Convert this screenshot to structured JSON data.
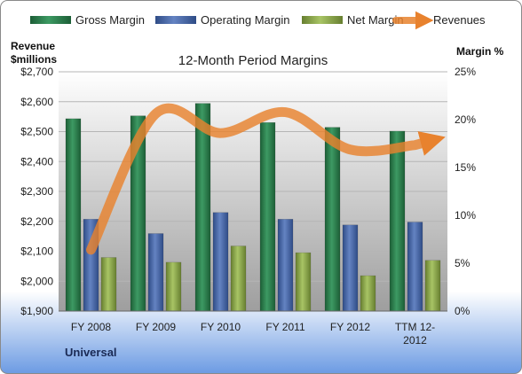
{
  "chart_data": {
    "type": "bar",
    "title": "12-Month Period Margins",
    "company": "Universal",
    "categories": [
      "FY 2008",
      "FY 2009",
      "FY 2010",
      "FY 2011",
      "FY 2012",
      "TTM 12-2012"
    ],
    "y_left_label_lines": [
      "Revenue",
      "$millions"
    ],
    "y_right_label": "Margin %",
    "y_left_range": [
      1900,
      2700
    ],
    "y_left_ticks": [
      "$1,900",
      "$2,000",
      "$2,100",
      "$2,200",
      "$2,300",
      "$2,400",
      "$2,500",
      "$2,600",
      "$2,700"
    ],
    "y_right_range": [
      0,
      25
    ],
    "y_right_ticks": [
      "0%",
      "5%",
      "10%",
      "15%",
      "20%",
      "25%"
    ],
    "grid": true,
    "legend_position": "top",
    "series": [
      {
        "name": "Gross Margin",
        "axis": "right",
        "kind": "bar",
        "color": "#2e7d4f",
        "values": [
          20.1,
          20.4,
          21.7,
          19.7,
          19.2,
          18.8
        ]
      },
      {
        "name": "Operating Margin",
        "axis": "right",
        "kind": "bar",
        "color": "#4a68a8",
        "values": [
          9.6,
          8.1,
          10.3,
          9.6,
          9.0,
          9.3
        ]
      },
      {
        "name": "Net Margin",
        "axis": "right",
        "kind": "bar",
        "color": "#8aa84a",
        "values": [
          5.6,
          5.1,
          6.8,
          6.1,
          3.7,
          5.3
        ]
      },
      {
        "name": "Revenues",
        "axis": "left",
        "kind": "line",
        "color": "#e8822e",
        "values": [
          2105,
          2560,
          2495,
          2565,
          2440,
          2455
        ]
      }
    ]
  }
}
